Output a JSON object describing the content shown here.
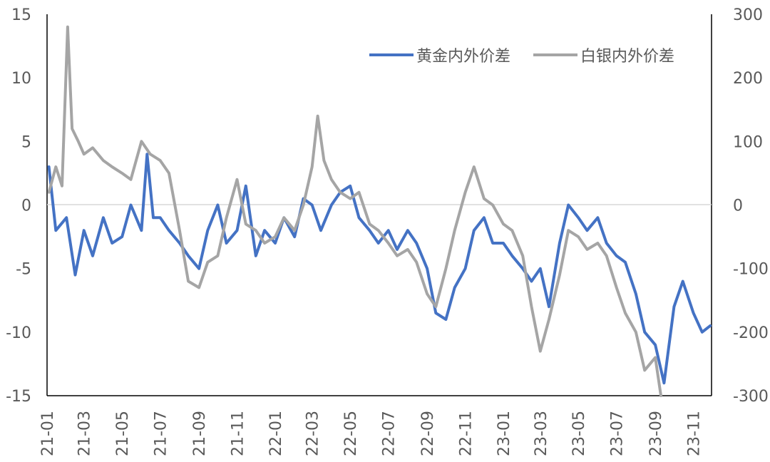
{
  "chart_data": {
    "type": "line",
    "title": "",
    "xlabel": "",
    "ylabel": "",
    "x_tick_labels": [
      "21-01",
      "21-03",
      "21-05",
      "21-07",
      "21-09",
      "21-11",
      "22-01",
      "22-03",
      "22-05",
      "22-07",
      "22-09",
      "22-11",
      "23-01",
      "23-03",
      "23-05",
      "23-07",
      "23-09",
      "23-11"
    ],
    "y_left_ticks": [
      "15",
      "10",
      "5",
      "0",
      "-5",
      "-10",
      "-15"
    ],
    "y_right_ticks": [
      "300",
      "200",
      "100",
      "0",
      "-100",
      "-200",
      "-300"
    ],
    "ylim_left": [
      -15,
      15
    ],
    "ylim_right": [
      -300,
      300
    ],
    "x_domain": [
      "2021-01-01",
      "2023-11-30"
    ],
    "legend_position": "top-right",
    "gridlines": false,
    "colors": {
      "gold": "#4472C4",
      "silver": "#A5A5A5",
      "zero_line": "#D9D9D9",
      "axis": "#000000"
    },
    "series": [
      {
        "name": "黄金内外价差",
        "axis": "left",
        "color": "#4472C4",
        "x": [
          "2021-01-04",
          "2021-01-15",
          "2021-02-01",
          "2021-02-15",
          "2021-03-01",
          "2021-03-15",
          "2021-04-01",
          "2021-04-15",
          "2021-05-01",
          "2021-05-15",
          "2021-06-01",
          "2021-06-10",
          "2021-06-20",
          "2021-07-01",
          "2021-07-15",
          "2021-08-01",
          "2021-08-15",
          "2021-09-01",
          "2021-09-15",
          "2021-10-01",
          "2021-10-15",
          "2021-11-01",
          "2021-11-15",
          "2021-12-01",
          "2021-12-15",
          "2022-01-01",
          "2022-01-15",
          "2022-02-01",
          "2022-02-15",
          "2022-03-01",
          "2022-03-15",
          "2022-04-01",
          "2022-04-15",
          "2022-05-01",
          "2022-05-15",
          "2022-06-01",
          "2022-06-15",
          "2022-07-01",
          "2022-07-15",
          "2022-08-01",
          "2022-08-15",
          "2022-09-01",
          "2022-09-15",
          "2022-10-01",
          "2022-10-15",
          "2022-11-01",
          "2022-11-15",
          "2022-12-01",
          "2022-12-15",
          "2023-01-01",
          "2023-01-15",
          "2023-02-01",
          "2023-02-15",
          "2023-03-01",
          "2023-03-15",
          "2023-04-01",
          "2023-04-15",
          "2023-05-01",
          "2023-05-15",
          "2023-06-01",
          "2023-06-15",
          "2023-07-01",
          "2023-07-15",
          "2023-08-01",
          "2023-08-15",
          "2023-09-01",
          "2023-09-15",
          "2023-10-01",
          "2023-10-15",
          "2023-11-01",
          "2023-11-15",
          "2023-11-28"
        ],
        "y": [
          3.0,
          -2.0,
          -1.0,
          -5.5,
          -2.0,
          -4.0,
          -1.0,
          -3.0,
          -2.5,
          0.0,
          -2.0,
          4.0,
          -1.0,
          -1.0,
          -2.0,
          -3.0,
          -4.0,
          -5.0,
          -2.0,
          0.0,
          -3.0,
          -2.0,
          1.5,
          -4.0,
          -2.0,
          -3.0,
          -1.0,
          -2.5,
          0.5,
          0.0,
          -2.0,
          0.0,
          1.0,
          1.5,
          -1.0,
          -2.0,
          -3.0,
          -2.0,
          -3.5,
          -2.0,
          -3.0,
          -5.0,
          -8.5,
          -9.0,
          -6.5,
          -5.0,
          -2.0,
          -1.0,
          -3.0,
          -3.0,
          -4.0,
          -5.0,
          -6.0,
          -5.0,
          -8.0,
          -3.0,
          0.0,
          -1.0,
          -2.0,
          -1.0,
          -3.0,
          -4.0,
          -4.5,
          -7.0,
          -10.0,
          -11.0,
          -14.0,
          -8.0,
          -6.0,
          -8.5,
          -10.0,
          -9.5
        ]
      },
      {
        "name": "白银内外价差",
        "axis": "right",
        "color": "#A5A5A5",
        "x": [
          "2021-01-04",
          "2021-01-15",
          "2021-01-25",
          "2021-02-03",
          "2021-02-10",
          "2021-02-20",
          "2021-03-01",
          "2021-03-15",
          "2021-04-01",
          "2021-04-15",
          "2021-05-01",
          "2021-05-15",
          "2021-06-01",
          "2021-06-15",
          "2021-07-01",
          "2021-07-15",
          "2021-08-01",
          "2021-08-15",
          "2021-09-01",
          "2021-09-15",
          "2021-10-01",
          "2021-10-15",
          "2021-11-01",
          "2021-11-15",
          "2021-12-01",
          "2021-12-15",
          "2022-01-01",
          "2022-01-15",
          "2022-02-01",
          "2022-02-15",
          "2022-03-01",
          "2022-03-10",
          "2022-03-20",
          "2022-04-01",
          "2022-04-15",
          "2022-05-01",
          "2022-05-15",
          "2022-06-01",
          "2022-06-15",
          "2022-07-01",
          "2022-07-15",
          "2022-08-01",
          "2022-08-15",
          "2022-09-01",
          "2022-09-15",
          "2022-10-01",
          "2022-10-15",
          "2022-11-01",
          "2022-11-15",
          "2022-12-01",
          "2022-12-15",
          "2023-01-01",
          "2023-01-15",
          "2023-02-01",
          "2023-02-15",
          "2023-03-01",
          "2023-03-15",
          "2023-04-01",
          "2023-04-15",
          "2023-05-01",
          "2023-05-15",
          "2023-06-01",
          "2023-06-15",
          "2023-07-01",
          "2023-07-15",
          "2023-08-01",
          "2023-08-15",
          "2023-09-01",
          "2023-09-10"
        ],
        "y": [
          20,
          60,
          30,
          280,
          120,
          100,
          80,
          90,
          70,
          60,
          50,
          40,
          100,
          80,
          70,
          50,
          -40,
          -120,
          -130,
          -90,
          -80,
          -20,
          40,
          -30,
          -40,
          -60,
          -50,
          -20,
          -40,
          0,
          60,
          140,
          70,
          40,
          20,
          10,
          20,
          -30,
          -40,
          -60,
          -80,
          -70,
          -90,
          -140,
          -160,
          -100,
          -40,
          20,
          60,
          10,
          0,
          -30,
          -40,
          -80,
          -160,
          -230,
          -180,
          -110,
          -40,
          -50,
          -70,
          -60,
          -80,
          -130,
          -170,
          -200,
          -260,
          -240,
          -300
        ]
      }
    ]
  }
}
